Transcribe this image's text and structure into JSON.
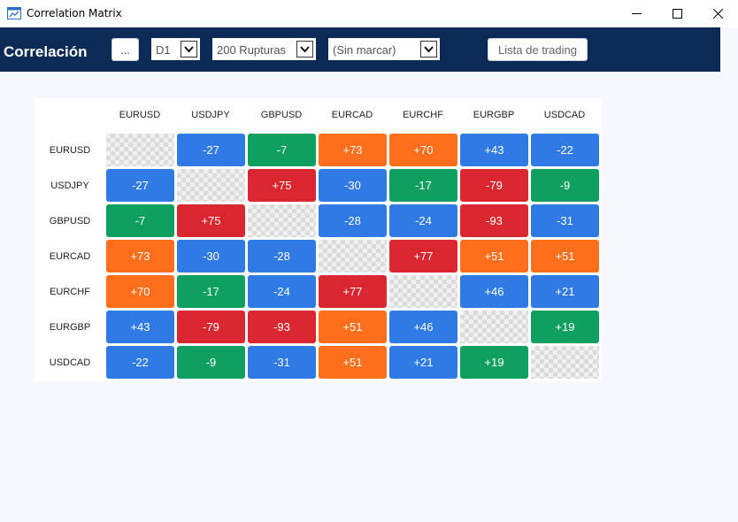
{
  "window": {
    "title": "Correlation Matrix"
  },
  "toolbar": {
    "title": "Correlación",
    "more_label": "...",
    "timeframe": "D1",
    "bars": "200 Rupturas",
    "marker": "(Sin marcar)",
    "trading_list_label": "Lista de trading"
  },
  "matrix": {
    "symbols": [
      "EURUSD",
      "USDJPY",
      "GBPUSD",
      "EURCAD",
      "EURCHF",
      "EURGBP",
      "USDCAD"
    ],
    "values": [
      [
        null,
        "-27",
        "-7",
        "+73",
        "+70",
        "+43",
        "-22"
      ],
      [
        "-27",
        null,
        "+75",
        "-30",
        "-17",
        "-79",
        "-9"
      ],
      [
        "-7",
        "+75",
        null,
        "-28",
        "-24",
        "-93",
        "-31"
      ],
      [
        "+73",
        "-30",
        "-28",
        null,
        "+77",
        "+51",
        "+51"
      ],
      [
        "+70",
        "-17",
        "-24",
        "+77",
        null,
        "+46",
        "+21"
      ],
      [
        "+43",
        "-79",
        "-93",
        "+51",
        "+46",
        null,
        "+19"
      ],
      [
        "-22",
        "-9",
        "-31",
        "+51",
        "+21",
        "+19",
        null
      ]
    ],
    "colors": {
      "strong_negative": "#d9262f",
      "negative": "#2f7ae5",
      "neutral": "#0fa060",
      "positive": "#ff6e1a",
      "strong_positive": "#d9262f"
    }
  }
}
